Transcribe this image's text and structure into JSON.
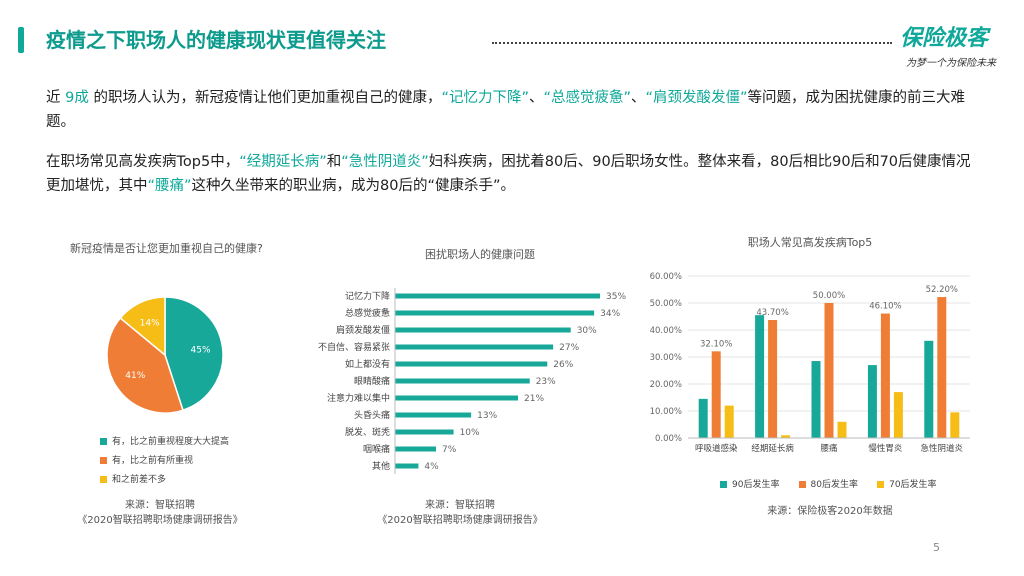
{
  "header": {
    "title": "疫情之下职场人的健康现状更值得关注",
    "logo": "保险极客",
    "slogan": "为梦一个为保险未来"
  },
  "paragraph1": {
    "p1": "近 ",
    "p2": "9成",
    "p3": " 的职场人认为，新冠疫情让他们更加重视自己的健康，",
    "p4": "“记忆力下降”",
    "p5": "、",
    "p6": "“总感觉疲惫”",
    "p7": "、",
    "p8": "“肩颈发酸发僵”",
    "p9": "等问题，成为困扰健康的前三大难题。"
  },
  "paragraph2": {
    "p1": "在职场常见高发疾病Top5中，",
    "p2": "“经期延长病”",
    "p3": "和",
    "p4": "“急性阴道炎”",
    "p5": "妇科疾病，困扰着80后、90后职场女性。整体来看，80后相比90后和70后健康情况更加堪忧，其中",
    "p6": "“腰痛”",
    "p7": "这种久坐带来的职业病，成为80后的“健康杀手”。"
  },
  "charts": {
    "pie": {
      "title": "新冠疫情是否让您更加重视自己的健康?",
      "legend": [
        "有，比之前重视程度大大提高",
        "有，比之前有所重视",
        "和之前差不多"
      ],
      "source_line1": "来源：智联招聘",
      "source_line2": "《2020智联招聘职场健康调研报告》"
    },
    "hbar": {
      "title": "困扰职场人的健康问题",
      "source_line1": "来源：智联招聘",
      "source_line2": "《2020智联招聘职场健康调研报告》"
    },
    "vbar": {
      "title": "职场人常见高发疾病Top5",
      "legend": [
        "90后发生率",
        "80后发生率",
        "70后发生率"
      ],
      "source": "来源：保险极客2020年数据"
    }
  },
  "page_number": "5",
  "colors": {
    "teal": "#17a89a",
    "orange": "#ef7d35",
    "yellow": "#f6bd16",
    "accent_text": "#0fa89a"
  },
  "chart_data": [
    {
      "type": "pie",
      "title": "新冠疫情是否让您更加重视自己的健康?",
      "categories": [
        "有，比之前重视程度大大提高",
        "有，比之前有所重视",
        "和之前差不多"
      ],
      "values": [
        45,
        41,
        14
      ],
      "labels": [
        "45%",
        "41%",
        "14%"
      ],
      "colors": [
        "#17a89a",
        "#ef7d35",
        "#f6bd16"
      ],
      "legend_position": "bottom"
    },
    {
      "type": "bar",
      "orientation": "horizontal",
      "title": "困扰职场人的健康问题",
      "categories": [
        "记忆力下降",
        "总感觉疲惫",
        "肩颈发酸发僵",
        "不自信、容易紧张",
        "如上都没有",
        "眼睛酸痛",
        "注意力难以集中",
        "头昏头痛",
        "脱发、斑秃",
        "咽喉痛",
        "其他"
      ],
      "values": [
        35,
        34,
        30,
        27,
        26,
        23,
        21,
        13,
        10,
        7,
        4
      ],
      "labels": [
        "35%",
        "34%",
        "30%",
        "27%",
        "26%",
        "23%",
        "21%",
        "13%",
        "10%",
        "7%",
        "4%"
      ],
      "color": "#17a89a",
      "xlim": [
        0,
        35
      ]
    },
    {
      "type": "bar",
      "title": "职场人常见高发疾病Top5",
      "categories": [
        "呼吸道感染",
        "经期延长病",
        "腰痛",
        "慢性胃炎",
        "急性阴道炎"
      ],
      "series": [
        {
          "name": "90后发生率",
          "color": "#17a89a",
          "values": [
            14.5,
            45.5,
            28.5,
            27,
            36
          ]
        },
        {
          "name": "80后发生率",
          "color": "#ef7d35",
          "values": [
            32.1,
            43.7,
            50,
            46.1,
            52.2
          ]
        },
        {
          "name": "70后发生率",
          "color": "#f6bd16",
          "values": [
            12,
            1,
            6,
            17,
            9.5
          ]
        }
      ],
      "point_labels": {
        "series": "80后发生率",
        "labels": [
          "32.10%",
          "43.70%",
          "50.00%",
          "46.10%",
          "52.20%"
        ]
      },
      "y_ticks": [
        "0.00%",
        "10.00%",
        "20.00%",
        "30.00%",
        "40.00%",
        "50.00%",
        "60.00%"
      ],
      "ylim": [
        0,
        60
      ],
      "grid": true,
      "legend_position": "bottom"
    }
  ]
}
